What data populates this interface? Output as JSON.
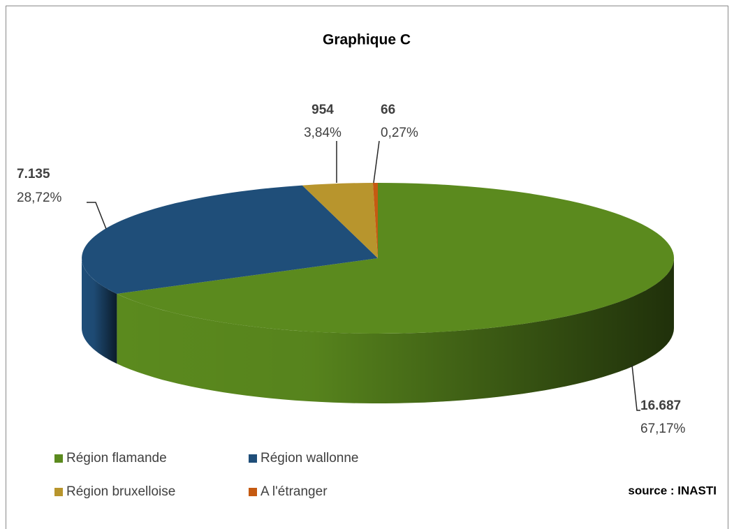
{
  "chart_data": {
    "type": "pie3d",
    "title": "Graphique C",
    "categories": [
      "Région flamande",
      "Région wallonne",
      "Région bruxelloise",
      "A l'étranger"
    ],
    "values": [
      16687,
      7135,
      954,
      66
    ],
    "value_labels": [
      "16.687",
      "7.135",
      "954",
      "66"
    ],
    "percentages": [
      67.17,
      28.72,
      3.84,
      0.27
    ],
    "percentage_labels": [
      "67,17%",
      "28,72%",
      "3,84%",
      "0,27%"
    ],
    "colors": [
      "#5b8a1e",
      "#1f4e79",
      "#b8952d",
      "#c55a11"
    ],
    "legend": "bottom",
    "source": "source : INASTI"
  }
}
